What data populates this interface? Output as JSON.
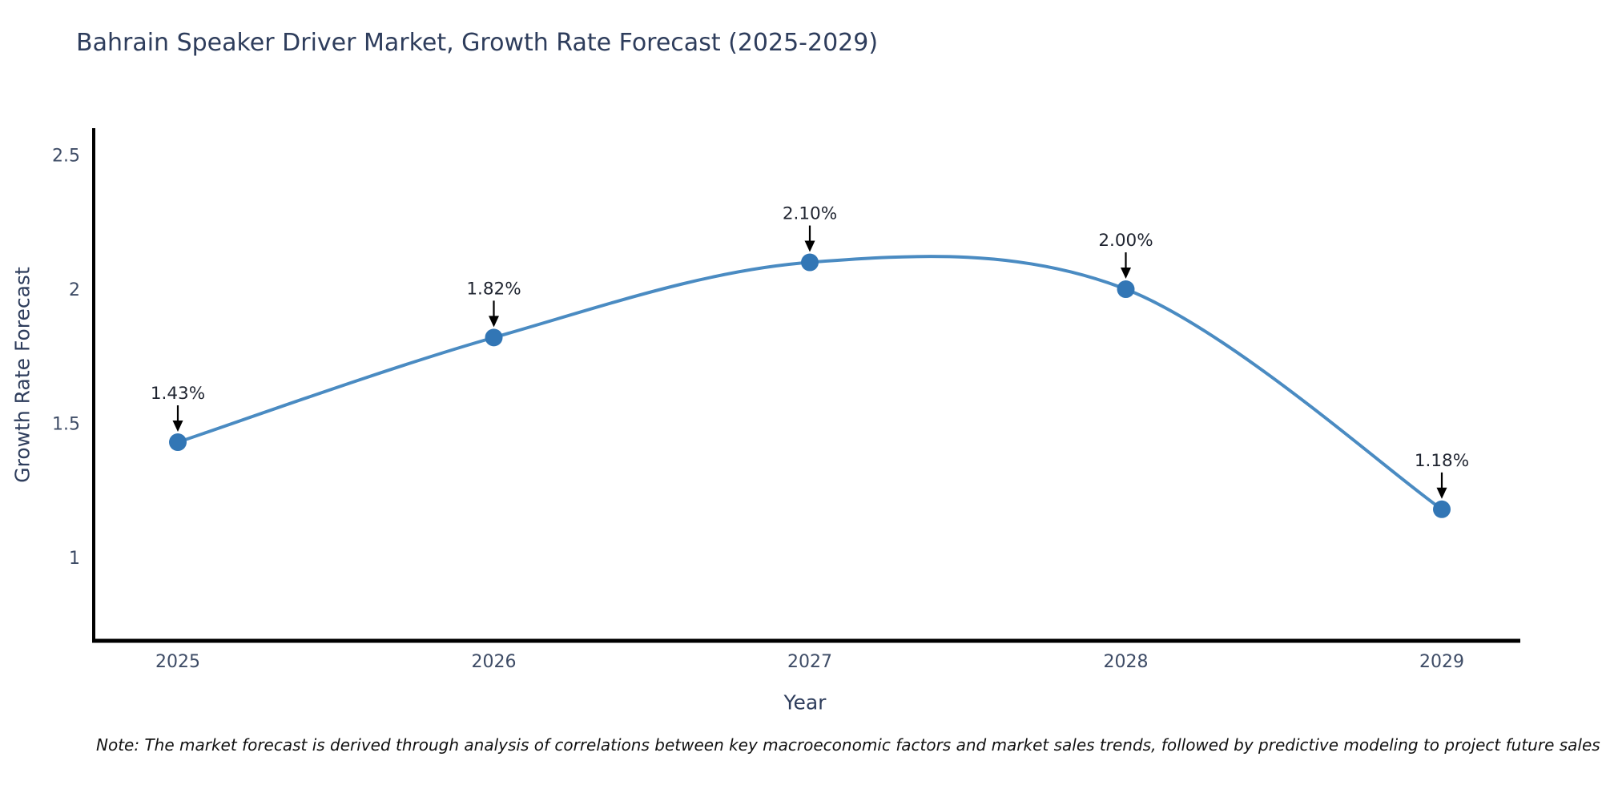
{
  "title": "Bahrain Speaker Driver Market, Growth Rate Forecast (2025-2029)",
  "note": "Note: The market forecast is derived through analysis of correlations between key macroeconomic factors and market sales trends, followed by predictive modeling to project future sales",
  "chart_data": {
    "type": "line",
    "title": "Bahrain Speaker Driver Market, Growth Rate Forecast (2025-2029)",
    "xlabel": "Year",
    "ylabel": "Growth Rate Forecast",
    "categories": [
      "2025",
      "2026",
      "2027",
      "2028",
      "2029"
    ],
    "values": [
      1.43,
      1.82,
      2.1,
      2.0,
      1.18
    ],
    "point_labels": [
      "1.43%",
      "1.82%",
      "2.10%",
      "2.00%",
      "1.18%"
    ],
    "yticks": [
      1,
      1.5,
      2,
      2.5
    ],
    "ytick_labels": [
      "1",
      "1.5",
      "2",
      "2.5"
    ],
    "ylim": [
      0.69,
      2.6
    ],
    "line_shape": "spline",
    "grid": false,
    "legend": "none",
    "colors": {
      "line": "#4a8bc2",
      "marker": "#3276b5",
      "axis": "#000000",
      "annotation_arrow": "#000000",
      "title_text": "#2e3d5c",
      "tick_text": "#3e4c66",
      "annotation_text": "#1f2430"
    }
  }
}
